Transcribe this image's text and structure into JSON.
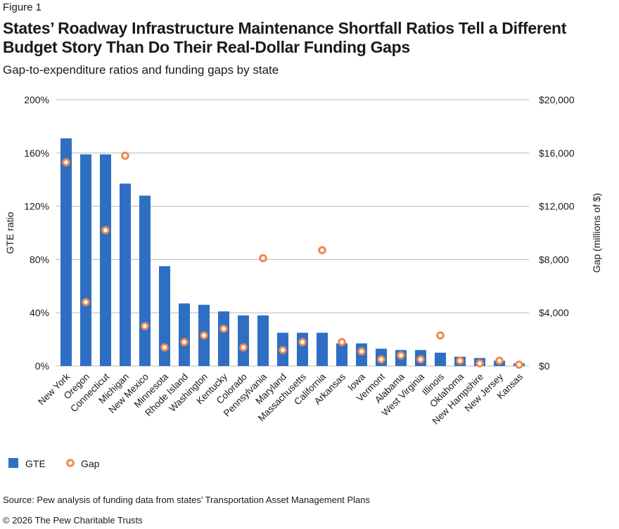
{
  "figure_label": "Figure 1",
  "title": "States’ Roadway Infrastructure Maintenance Shortfall Ratios Tell a Different Budget Story Than Do Their Real-Dollar Funding Gaps",
  "subtitle": "Gap-to-expenditure ratios and funding gaps by state",
  "source": "Source: Pew analysis of funding data from states’ Transportation Asset Management Plans",
  "copyright": "© 2026 The Pew Charitable Trusts",
  "colors": {
    "bar": "#2e6fc4",
    "marker": "#ee8a4e",
    "grid": "#b7b7b7"
  },
  "chart_data": {
    "type": "bar",
    "categories": [
      "New York",
      "Oregon",
      "Connecticut",
      "Michigan",
      "New Mexico",
      "Minnesota",
      "Rhode Island",
      "Washington",
      "Kentucky",
      "Colorado",
      "Pennsylvania",
      "Maryland",
      "Massachusetts",
      "California",
      "Arkansas",
      "Iowa",
      "Vermont",
      "Alabama",
      "West Virginia",
      "Illinois",
      "Oklahoma",
      "New Hampshire",
      "New Jersey",
      "Kansas"
    ],
    "series": [
      {
        "name": "GTE",
        "type": "bar",
        "axis": "left",
        "values": [
          171,
          159,
          159,
          137,
          128,
          75,
          47,
          46,
          41,
          38,
          38,
          25,
          25,
          25,
          17,
          17,
          13,
          12,
          12,
          10,
          7,
          6,
          4,
          2
        ]
      },
      {
        "name": "Gap",
        "type": "scatter",
        "axis": "right",
        "values": [
          15300,
          4800,
          10200,
          15800,
          3000,
          1400,
          1800,
          2300,
          2800,
          1400,
          8100,
          1200,
          1800,
          8700,
          1800,
          1100,
          500,
          800,
          500,
          2300,
          400,
          200,
          400,
          100
        ]
      }
    ],
    "ylabel": "GTE ratio",
    "y2label": "Gap (millions of $)",
    "ylim": [
      0,
      200
    ],
    "y2lim": [
      0,
      20000
    ],
    "yticks": [
      "0%",
      "40%",
      "80%",
      "120%",
      "160%",
      "200%"
    ],
    "y2ticks": [
      "$0",
      "$4,000",
      "$8,000",
      "$12,000",
      "$16,000",
      "$20,000"
    ],
    "grid": true,
    "legend_position": "bottom-left"
  }
}
